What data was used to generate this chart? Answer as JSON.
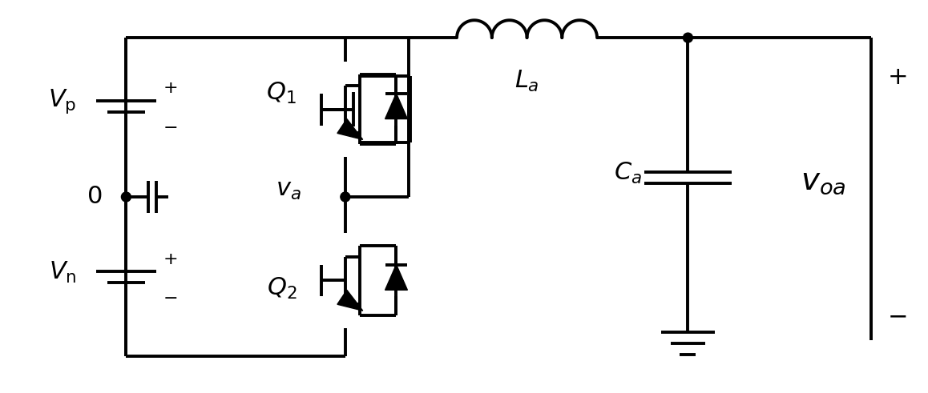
{
  "bg_color": "#ffffff",
  "line_color": "#000000",
  "lw": 2.8,
  "fig_width": 11.58,
  "fig_height": 4.91
}
